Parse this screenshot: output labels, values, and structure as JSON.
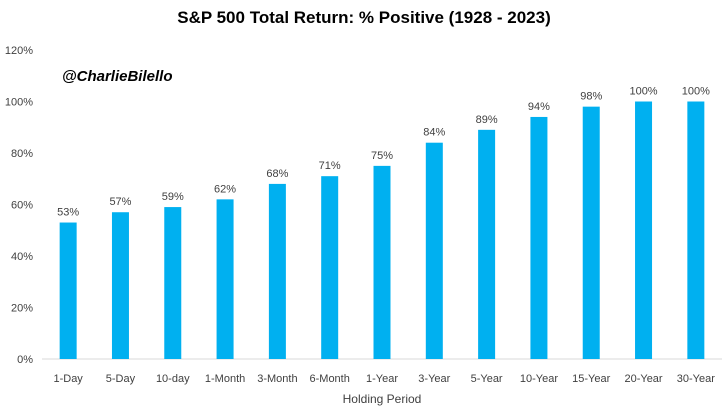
{
  "chart_data": {
    "type": "bar",
    "title": "S&P 500 Total Return: % Positive (1928 - 2023)",
    "xlabel": "Holding Period",
    "ylabel": "",
    "watermark": "@CharlieBilello",
    "categories": [
      "1-Day",
      "5-Day",
      "10-day",
      "1-Month",
      "3-Month",
      "6-Month",
      "1-Year",
      "3-Year",
      "5-Year",
      "10-Year",
      "15-Year",
      "20-Year",
      "30-Year"
    ],
    "values": [
      53,
      57,
      59,
      62,
      68,
      71,
      75,
      84,
      89,
      94,
      98,
      100,
      100
    ],
    "data_labels": [
      "53%",
      "57%",
      "59%",
      "62%",
      "68%",
      "71%",
      "75%",
      "84%",
      "89%",
      "94%",
      "98%",
      "100%",
      "100%"
    ],
    "ylim": [
      0,
      120
    ],
    "yticks": [
      0,
      20,
      40,
      60,
      80,
      100,
      120
    ],
    "ytick_labels": [
      "0%",
      "20%",
      "40%",
      "60%",
      "80%",
      "100%",
      "120%"
    ],
    "grid": false,
    "legend": "none",
    "bar_color": "#00B0F0"
  }
}
